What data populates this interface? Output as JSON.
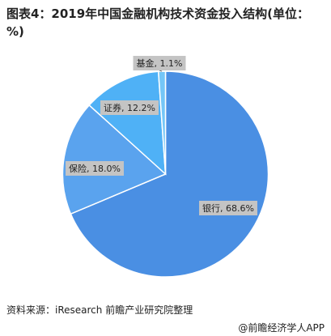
{
  "chart_data": {
    "type": "pie",
    "title": "图表4：2019年中国金融机构技术资金投入结构(单位：%)",
    "values": [
      68.6,
      18.0,
      12.2,
      1.1
    ],
    "value_labels": [
      "银行, 68.6%",
      "保险, 18.0%",
      "证券, 12.2%",
      "基金, 1.1%"
    ],
    "colors": [
      "#4a8fe3",
      "#5aa3ee",
      "#4fb1f6",
      "#74c6f7"
    ],
    "source": "资料来源：iResearch 前瞻产业研究院整理",
    "brand": "@前瞻经济学人APP"
  }
}
